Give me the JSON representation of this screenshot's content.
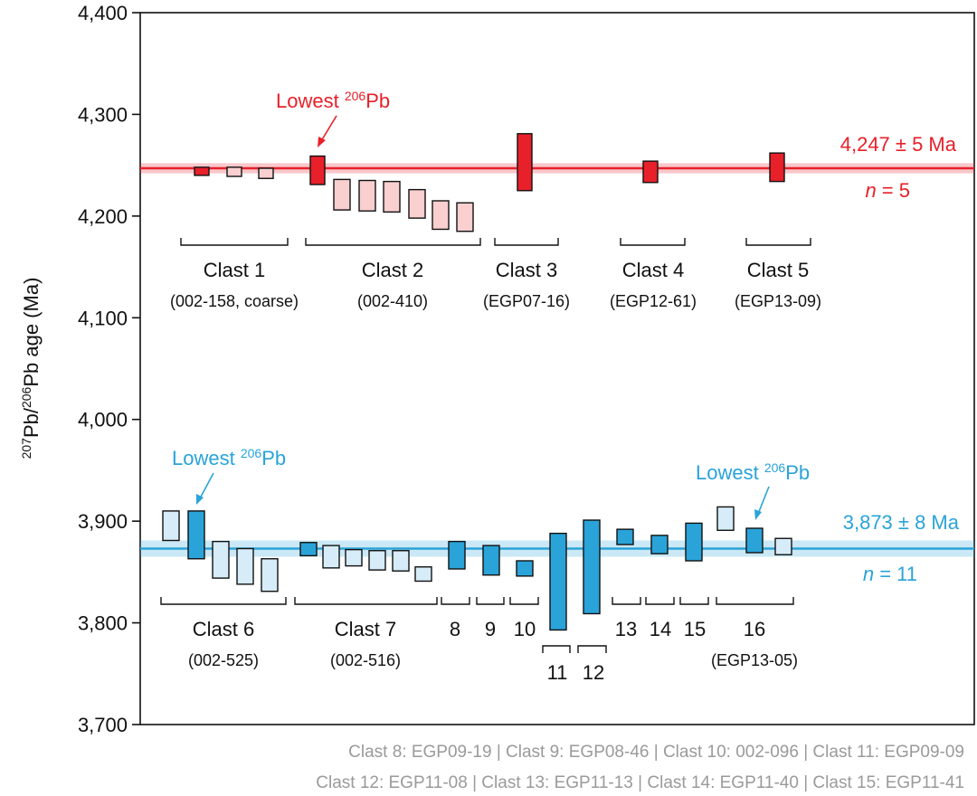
{
  "chart_data": {
    "type": "error-bar",
    "ylabel": "Pb/Pb age (Ma)",
    "ylabel_sup1": "207",
    "ylabel_sup2": "206",
    "ylim": [
      3700,
      4400
    ],
    "yticks": [
      "3,700",
      "3,800",
      "3,900",
      "4,000",
      "4,100",
      "4,200",
      "4,300",
      "4,400"
    ],
    "groups": [
      {
        "name": "upper",
        "color": "#e8202a",
        "light": "#f9cfcf",
        "mean_label": "4,247 ± 5 Ma",
        "n_italic": "n",
        "n_rest": " = 5",
        "mean": 4247,
        "err": 5,
        "callout_text": "Lowest ",
        "callout_sup": "206",
        "callout_pb": "Pb",
        "bars": [
          {
            "clast": 1,
            "low": 4240,
            "high": 4248,
            "selected": true
          },
          {
            "clast": 1,
            "low": 4239,
            "high": 4248,
            "selected": false
          },
          {
            "clast": 1,
            "low": 4237,
            "high": 4247,
            "selected": false
          },
          {
            "clast": 2,
            "low": 4231,
            "high": 4259,
            "selected": true
          },
          {
            "clast": 2,
            "low": 4206,
            "high": 4236,
            "selected": false
          },
          {
            "clast": 2,
            "low": 4205,
            "high": 4235,
            "selected": false
          },
          {
            "clast": 2,
            "low": 4204,
            "high": 4234,
            "selected": false
          },
          {
            "clast": 2,
            "low": 4198,
            "high": 4226,
            "selected": false
          },
          {
            "clast": 2,
            "low": 4187,
            "high": 4215,
            "selected": false
          },
          {
            "clast": 2,
            "low": 4185,
            "high": 4213,
            "selected": false
          },
          {
            "clast": 3,
            "low": 4225,
            "high": 4281,
            "selected": true
          },
          {
            "clast": 4,
            "low": 4233,
            "high": 4254,
            "selected": true
          },
          {
            "clast": 5,
            "low": 4234,
            "high": 4262,
            "selected": true
          }
        ],
        "labels": [
          {
            "name": "Clast 1",
            "sub": "(002-158, coarse)"
          },
          {
            "name": "Clast 2",
            "sub": "(002-410)"
          },
          {
            "name": "Clast 3",
            "sub": "(EGP07-16)"
          },
          {
            "name": "Clast 4",
            "sub": "(EGP12-61)"
          },
          {
            "name": "Clast 5",
            "sub": "(EGP13-09)"
          }
        ]
      },
      {
        "name": "lower",
        "color": "#2aa3d9",
        "light": "#d6ecf8",
        "mean_label": "3,873 ± 8 Ma",
        "n_italic": "n",
        "n_rest": " = 11",
        "mean": 3873,
        "err": 8,
        "callout_text": "Lowest ",
        "callout_sup": "206",
        "callout_pb": "Pb",
        "bars": [
          {
            "clast": 6,
            "low": 3881,
            "high": 3910,
            "selected": false
          },
          {
            "clast": 6,
            "low": 3863,
            "high": 3910,
            "selected": true
          },
          {
            "clast": 6,
            "low": 3844,
            "high": 3880,
            "selected": false
          },
          {
            "clast": 6,
            "low": 3838,
            "high": 3873,
            "selected": false
          },
          {
            "clast": 6,
            "low": 3831,
            "high": 3863,
            "selected": false
          },
          {
            "clast": 7,
            "low": 3866,
            "high": 3879,
            "selected": true
          },
          {
            "clast": 7,
            "low": 3854,
            "high": 3876,
            "selected": false
          },
          {
            "clast": 7,
            "low": 3856,
            "high": 3872,
            "selected": false
          },
          {
            "clast": 7,
            "low": 3852,
            "high": 3871,
            "selected": false
          },
          {
            "clast": 7,
            "low": 3851,
            "high": 3871,
            "selected": false
          },
          {
            "clast": 7,
            "low": 3841,
            "high": 3855,
            "selected": false
          },
          {
            "clast": 8,
            "low": 3853,
            "high": 3880,
            "selected": true
          },
          {
            "clast": 9,
            "low": 3847,
            "high": 3876,
            "selected": true
          },
          {
            "clast": 10,
            "low": 3846,
            "high": 3861,
            "selected": true
          },
          {
            "clast": 11,
            "low": 3793,
            "high": 3888,
            "selected": true
          },
          {
            "clast": 12,
            "low": 3809,
            "high": 3901,
            "selected": true
          },
          {
            "clast": 13,
            "low": 3877,
            "high": 3892,
            "selected": true
          },
          {
            "clast": 14,
            "low": 3868,
            "high": 3886,
            "selected": true
          },
          {
            "clast": 15,
            "low": 3861,
            "high": 3898,
            "selected": true
          },
          {
            "clast": 16,
            "low": 3891,
            "high": 3914,
            "selected": false
          },
          {
            "clast": 16,
            "low": 3869,
            "high": 3893,
            "selected": true
          },
          {
            "clast": 16,
            "low": 3867,
            "high": 3883,
            "selected": false
          }
        ],
        "labels": [
          {
            "name": "Clast 6",
            "sub": "(002-525)"
          },
          {
            "name": "Clast 7",
            "sub": "(002-516)"
          },
          {
            "name": "8",
            "sub": ""
          },
          {
            "name": "9",
            "sub": ""
          },
          {
            "name": "10",
            "sub": ""
          },
          {
            "name": "11",
            "sub": ""
          },
          {
            "name": "12",
            "sub": ""
          },
          {
            "name": "13",
            "sub": ""
          },
          {
            "name": "14",
            "sub": ""
          },
          {
            "name": "15",
            "sub": ""
          },
          {
            "name": "16",
            "sub": "(EGP13-05)"
          }
        ]
      }
    ]
  },
  "footnote": {
    "line1": "Clast 8: EGP09-19 | Clast 9: EGP08-46 | Clast 10: 002-096 | Clast 11: EGP09-09",
    "line2": "Clast 12: EGP11-08 | Clast 13: EGP11-13 | Clast 14: EGP11-40 | Clast 15: EGP11-41"
  }
}
